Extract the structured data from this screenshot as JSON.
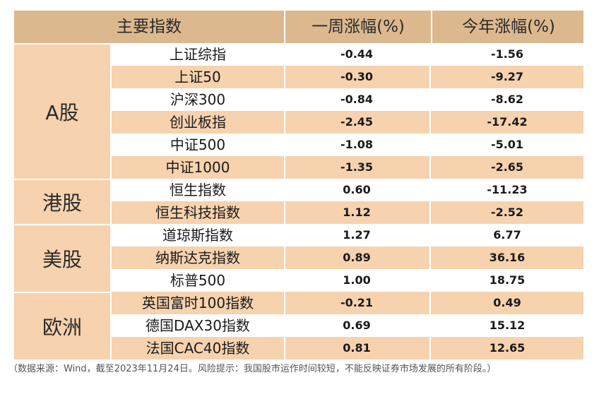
{
  "header": {
    "col1": "主要指数",
    "col2": "一周涨幅(%)",
    "col3": "今年涨幅(%)"
  },
  "groups": [
    {
      "label": "A股",
      "rows": [
        {
          "name": "上证综指",
          "week": "-0.44",
          "ytd": "-1.56"
        },
        {
          "name": "上证50",
          "week": "-0.30",
          "ytd": "-9.27"
        },
        {
          "name": "沪深300",
          "week": "-0.84",
          "ytd": "-8.62"
        },
        {
          "name": "创业板指",
          "week": "-2.45",
          "ytd": "-17.42"
        },
        {
          "name": "中证500",
          "week": "-1.08",
          "ytd": "-5.01"
        },
        {
          "name": "中证1000",
          "week": "-1.35",
          "ytd": "-2.65"
        }
      ]
    },
    {
      "label": "港股",
      "rows": [
        {
          "name": "恒生指数",
          "week": "0.60",
          "ytd": "-11.23"
        },
        {
          "name": "恒生科技指数",
          "week": "1.12",
          "ytd": "-2.52"
        }
      ]
    },
    {
      "label": "美股",
      "rows": [
        {
          "name": "道琼斯指数",
          "week": "1.27",
          "ytd": "6.77"
        },
        {
          "name": "纳斯达克指数",
          "week": "0.89",
          "ytd": "36.16"
        },
        {
          "name": "标普500",
          "week": "1.00",
          "ytd": "18.75"
        }
      ]
    },
    {
      "label": "欧洲",
      "rows": [
        {
          "name": "英国富时100指数",
          "week": "-0.21",
          "ytd": "0.49"
        },
        {
          "name": "德国DAX30指数",
          "week": "0.69",
          "ytd": "15.12"
        },
        {
          "name": "法国CAC40指数",
          "week": "0.81",
          "ytd": "12.65"
        }
      ]
    }
  ],
  "note": "（数据来源：Wind，截至2023年11月24日。风险提示：我国股市运作时间较短，不能反映证券市场发展的所有阶段。）"
}
